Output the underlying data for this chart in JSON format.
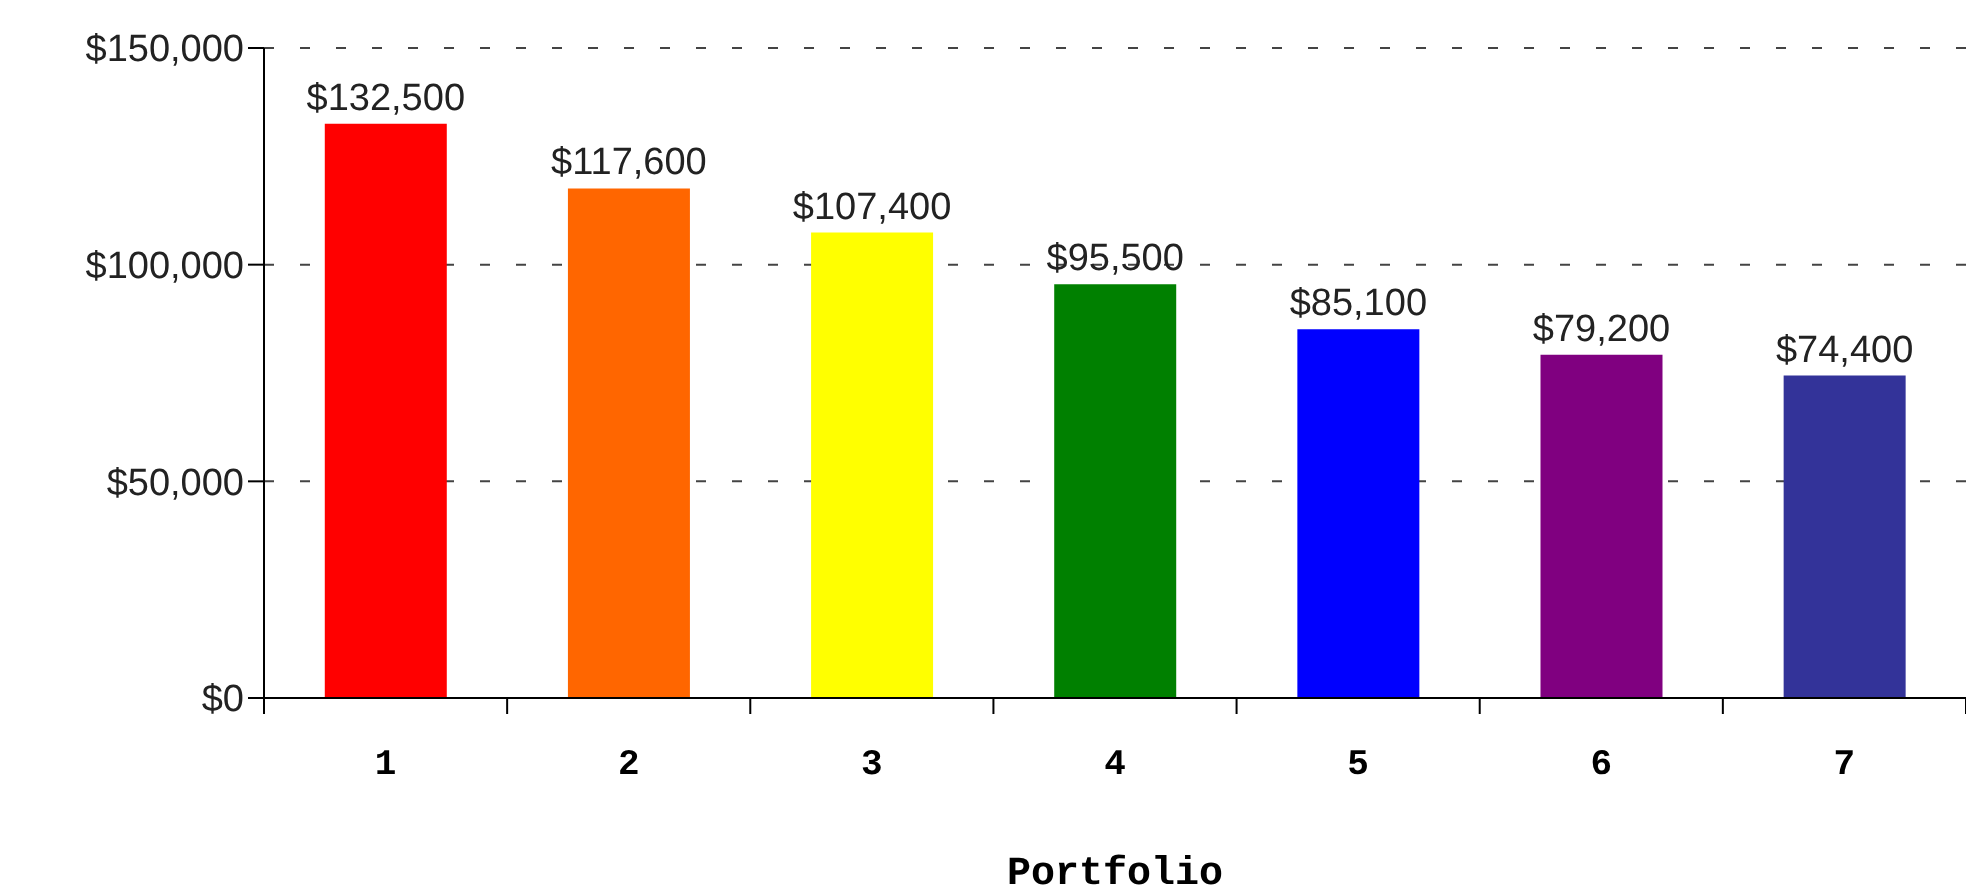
{
  "chart_data": {
    "type": "bar",
    "xlabel": "Portfolio",
    "categories": [
      "1",
      "2",
      "3",
      "4",
      "5",
      "6",
      "7"
    ],
    "values": [
      132500,
      117600,
      107400,
      95500,
      85100,
      79200,
      74400
    ],
    "colors": [
      "#ff0000",
      "#ff6600",
      "#ffff00",
      "#008000",
      "#0000ff",
      "#800080",
      "#333399"
    ],
    "value_labels": [
      "$132,500",
      "$117,600",
      "$107,400",
      "$95,500",
      "$85,100",
      "$79,200",
      "$74,400"
    ],
    "ylim": [
      0,
      150000
    ],
    "yticks": [
      {
        "value": 0,
        "label": "$0"
      },
      {
        "value": 50000,
        "label": "$50,000"
      },
      {
        "value": 100000,
        "label": "$100,000"
      },
      {
        "value": 150000,
        "label": "$150,000"
      }
    ],
    "grid": "y"
  }
}
